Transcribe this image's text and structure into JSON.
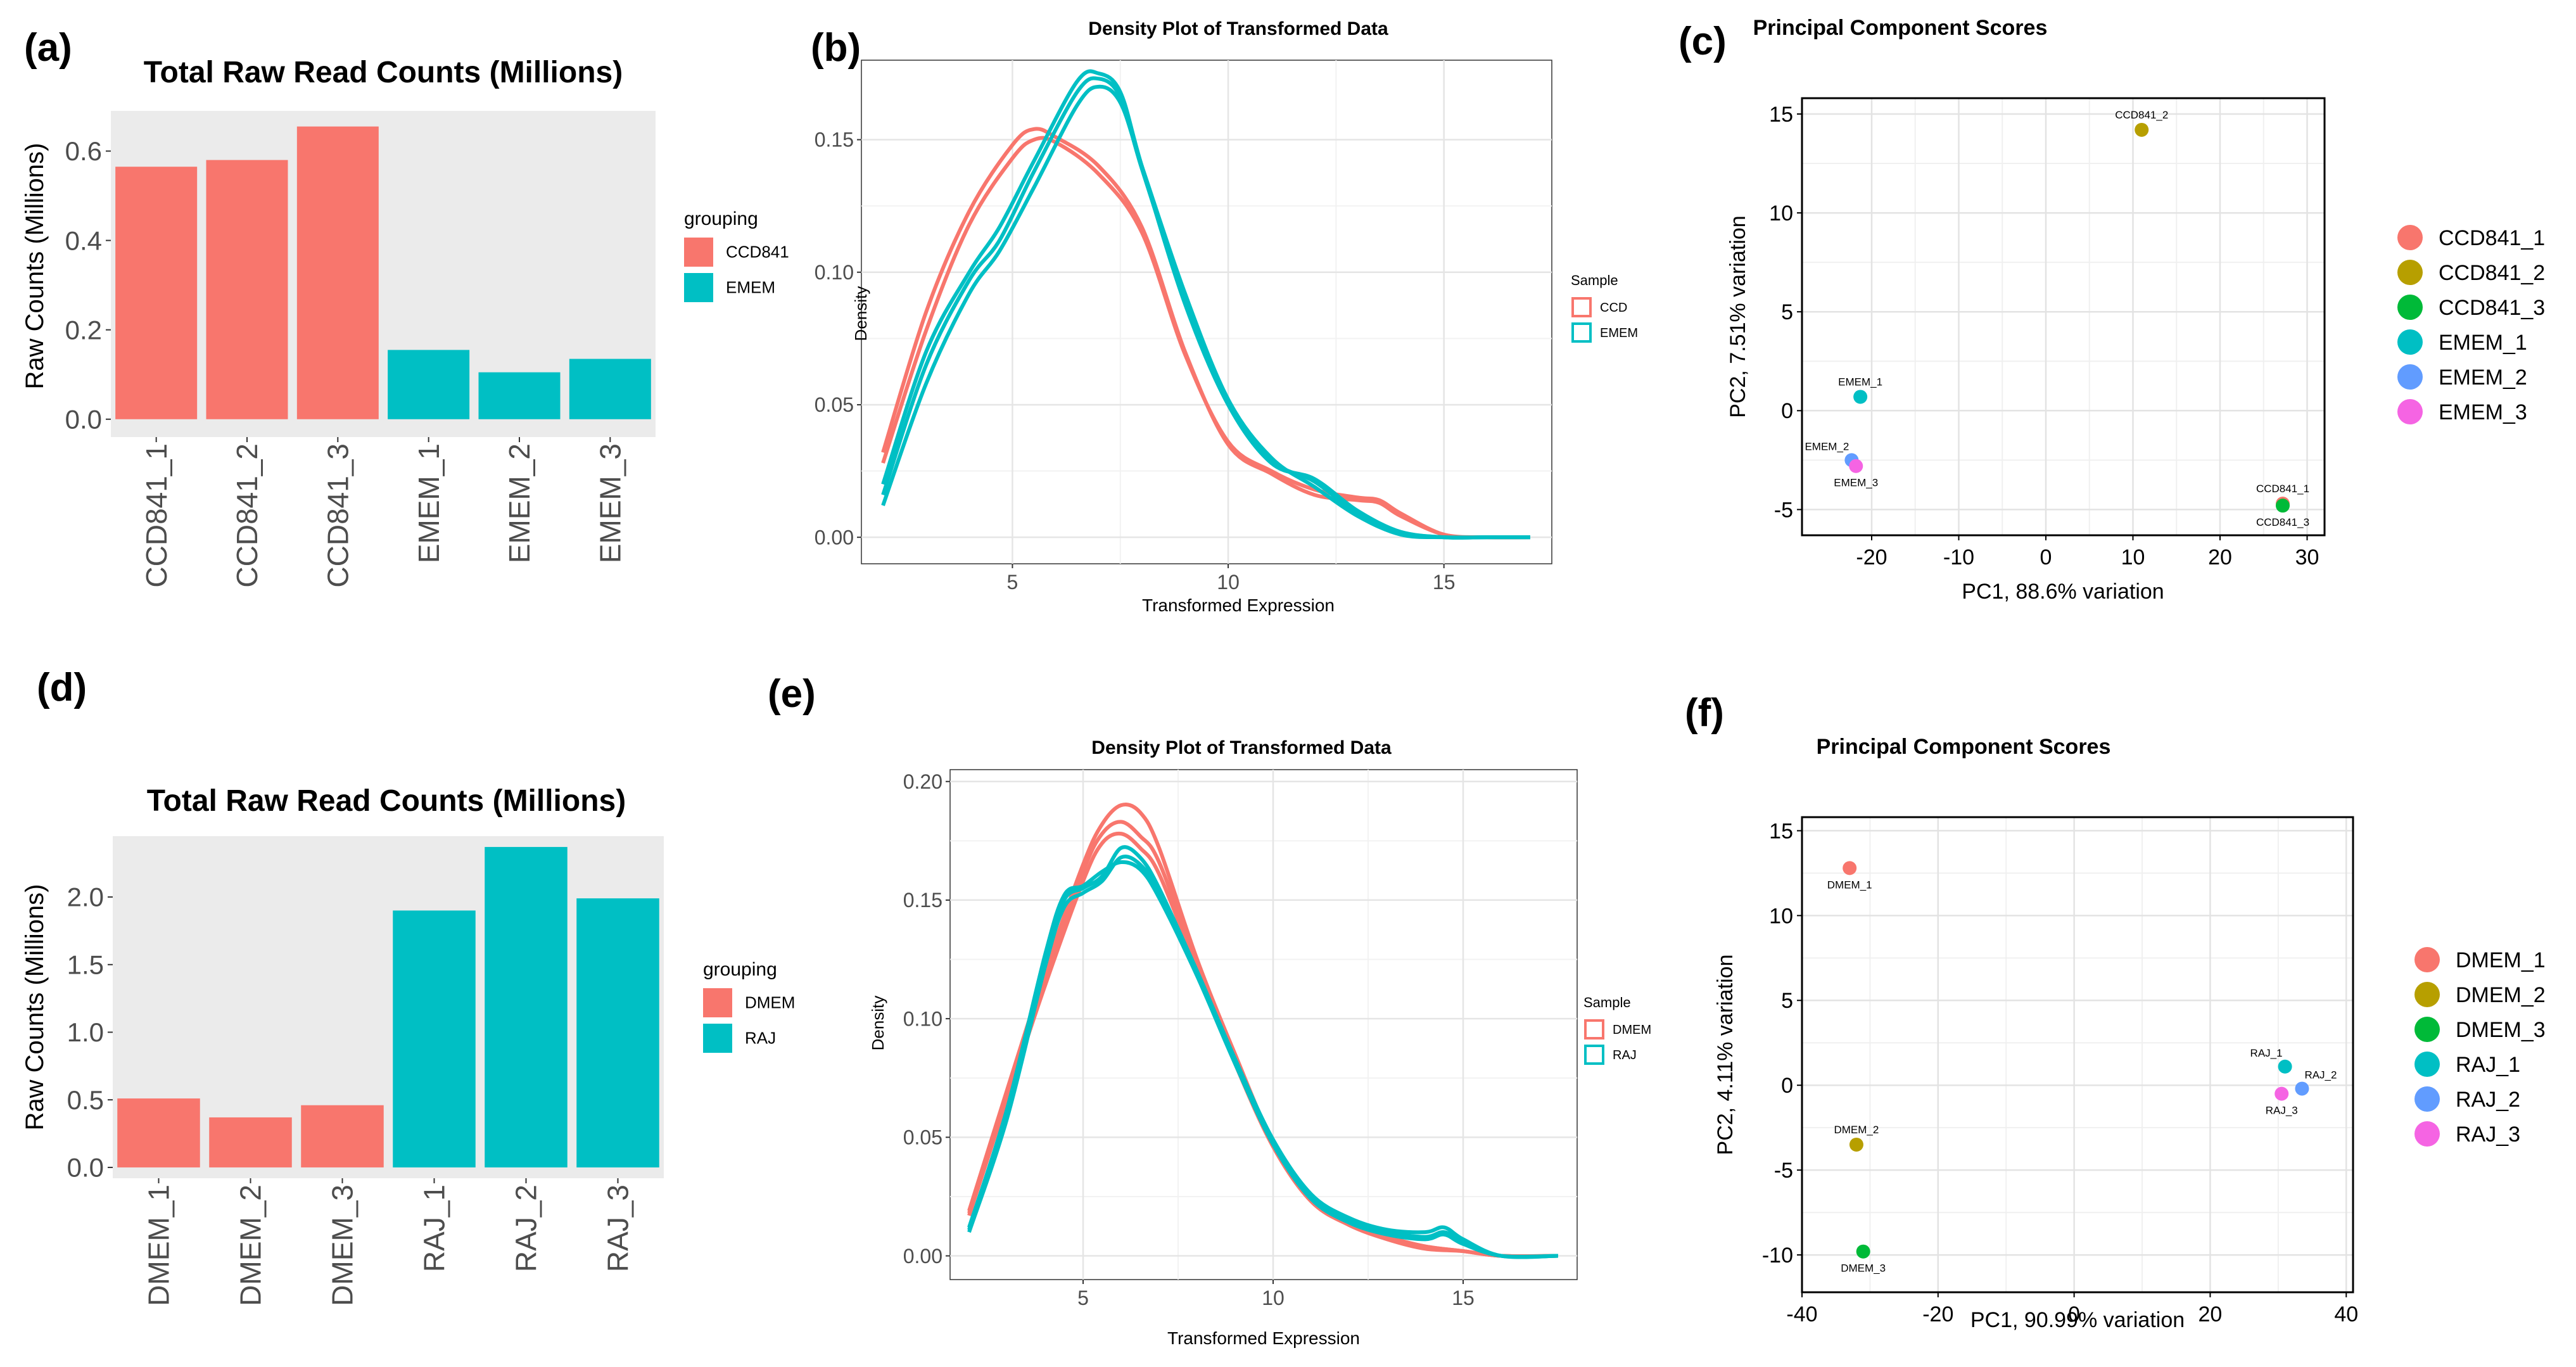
{
  "panels": {
    "a": {
      "label": "(a)"
    },
    "b": {
      "label": "(b)"
    },
    "c": {
      "label": "(c)"
    },
    "d": {
      "label": "(d)"
    },
    "e": {
      "label": "(e)"
    },
    "f": {
      "label": "(f)"
    }
  },
  "chart_data": [
    {
      "id": "a",
      "type": "bar",
      "title": "Total Raw Read Counts (Millions)",
      "xlabel": "",
      "ylabel": "Raw Counts (Millions)",
      "categories": [
        "CCD841_1",
        "CCD841_2",
        "CCD841_3",
        "EMEM_1",
        "EMEM_2",
        "EMEM_3"
      ],
      "values": [
        0.565,
        0.58,
        0.655,
        0.155,
        0.105,
        0.135
      ],
      "groups": [
        "CCD841",
        "CCD841",
        "CCD841",
        "EMEM",
        "EMEM",
        "EMEM"
      ],
      "ylim": [
        -0.04,
        0.69
      ],
      "yticks": [
        0.0,
        0.2,
        0.4,
        0.6
      ],
      "ytick_labels": [
        "0.0",
        "0.2",
        "0.4",
        "0.6"
      ],
      "legend": {
        "title": "grouping",
        "position": "right",
        "entries": [
          {
            "name": "CCD841",
            "color": "#F8766D"
          },
          {
            "name": "EMEM",
            "color": "#00BFC4"
          }
        ]
      },
      "grid": false
    },
    {
      "id": "b",
      "type": "line",
      "title": "Density Plot of Transformed Data",
      "xlabel": "Transformed Expression",
      "ylabel": "Density",
      "xlim": [
        1.5,
        17.5
      ],
      "ylim": [
        -0.01,
        0.18
      ],
      "xticks": [
        5,
        10,
        15
      ],
      "xtick_labels": [
        "5",
        "10",
        "15"
      ],
      "yticks": [
        0.0,
        0.05,
        0.1,
        0.15
      ],
      "ytick_labels": [
        "0.00",
        "0.05",
        "0.10",
        "0.15"
      ],
      "legend": {
        "title": "Sample",
        "position": "right",
        "entries": [
          {
            "name": "CCD",
            "color": "#F8766D"
          },
          {
            "name": "EMEM",
            "color": "#00BFC4"
          }
        ]
      },
      "grid": true,
      "series": [
        {
          "group": "CCD",
          "color": "#F8766D",
          "x": [
            2,
            3,
            4,
            5,
            5.5,
            6,
            7,
            8,
            9,
            10,
            11,
            12,
            13,
            13.5,
            14,
            15,
            16,
            17
          ],
          "y": [
            0.032,
            0.085,
            0.123,
            0.148,
            0.154,
            0.151,
            0.14,
            0.117,
            0.07,
            0.035,
            0.024,
            0.016,
            0.014,
            0.013,
            0.008,
            0.001,
            0.0,
            0.0
          ]
        },
        {
          "group": "CCD",
          "color": "#F8766D",
          "x": [
            2,
            3,
            4,
            5,
            5.5,
            6,
            7,
            8,
            9,
            10,
            11,
            12,
            13,
            13.5,
            14,
            15,
            16,
            17
          ],
          "y": [
            0.028,
            0.078,
            0.118,
            0.143,
            0.15,
            0.149,
            0.137,
            0.115,
            0.069,
            0.036,
            0.025,
            0.018,
            0.015,
            0.014,
            0.009,
            0.001,
            0.0,
            0.0
          ]
        },
        {
          "group": "EMEM",
          "color": "#00BFC4",
          "x": [
            2,
            3,
            4,
            4.7,
            5.5,
            6.5,
            7,
            7.5,
            8,
            9,
            10,
            11,
            12,
            13,
            14,
            15,
            16,
            17
          ],
          "y": [
            0.02,
            0.07,
            0.1,
            0.117,
            0.142,
            0.172,
            0.175,
            0.168,
            0.14,
            0.088,
            0.05,
            0.028,
            0.022,
            0.01,
            0.002,
            0.0,
            0.0,
            0.0
          ]
        },
        {
          "group": "EMEM",
          "color": "#00BFC4",
          "x": [
            2,
            3,
            4,
            4.7,
            5.5,
            6.5,
            7,
            7.5,
            8,
            9,
            10,
            11,
            12,
            13,
            14,
            15,
            16,
            17
          ],
          "y": [
            0.016,
            0.065,
            0.097,
            0.112,
            0.138,
            0.168,
            0.173,
            0.166,
            0.139,
            0.09,
            0.051,
            0.029,
            0.021,
            0.009,
            0.002,
            0.0,
            0.0,
            0.0
          ]
        },
        {
          "group": "EMEM",
          "color": "#00BFC4",
          "x": [
            2,
            3,
            4,
            4.7,
            5.5,
            6.5,
            7,
            7.5,
            8,
            9,
            10,
            11,
            12,
            13,
            14,
            15,
            16,
            17
          ],
          "y": [
            0.012,
            0.058,
            0.092,
            0.108,
            0.132,
            0.163,
            0.17,
            0.164,
            0.14,
            0.092,
            0.052,
            0.03,
            0.019,
            0.008,
            0.001,
            0.0,
            0.0,
            0.0
          ]
        }
      ]
    },
    {
      "id": "c",
      "type": "scatter",
      "title": "Principal Component Scores",
      "xlabel": "PC1, 88.6% variation",
      "ylabel": "PC2, 7.51% variation",
      "xlim": [
        -28,
        32
      ],
      "ylim": [
        -6.3,
        15.8
      ],
      "xticks": [
        -20,
        -10,
        0,
        10,
        20,
        30
      ],
      "xtick_labels": [
        "-20",
        "-10",
        "0",
        "10",
        "20",
        "30"
      ],
      "yticks": [
        -5,
        0,
        5,
        10,
        15
      ],
      "ytick_labels": [
        "-5",
        "0",
        "5",
        "10",
        "15"
      ],
      "legend": {
        "position": "right",
        "entries": [
          {
            "name": "CCD841_1",
            "color": "#F8766D"
          },
          {
            "name": "CCD841_2",
            "color": "#B79F00"
          },
          {
            "name": "CCD841_3",
            "color": "#00BA38"
          },
          {
            "name": "EMEM_1",
            "color": "#00BFC4"
          },
          {
            "name": "EMEM_2",
            "color": "#619CFF"
          },
          {
            "name": "EMEM_3",
            "color": "#F564E3"
          }
        ]
      },
      "grid": true,
      "points": [
        {
          "label": "CCD841_1",
          "x": 27.2,
          "y": -4.7,
          "color": "#F8766D",
          "label_pos": "above"
        },
        {
          "label": "CCD841_2",
          "x": 11.0,
          "y": 14.2,
          "color": "#B79F00",
          "label_pos": "above"
        },
        {
          "label": "CCD841_3",
          "x": 27.2,
          "y": -4.8,
          "color": "#00BA38",
          "label_pos": "below"
        },
        {
          "label": "EMEM_1",
          "x": -21.3,
          "y": 0.7,
          "color": "#00BFC4",
          "label_pos": "above"
        },
        {
          "label": "EMEM_2",
          "x": -22.3,
          "y": -2.5,
          "color": "#619CFF",
          "label_pos": "above-left"
        },
        {
          "label": "EMEM_3",
          "x": -21.8,
          "y": -2.8,
          "color": "#F564E3",
          "label_pos": "below"
        }
      ]
    },
    {
      "id": "d",
      "type": "bar",
      "title": "Total Raw Read Counts (Millions)",
      "xlabel": "",
      "ylabel": "Raw Counts (Millions)",
      "categories": [
        "DMEM_1",
        "DMEM_2",
        "DMEM_3",
        "RAJ_1",
        "RAJ_2",
        "RAJ_3"
      ],
      "values": [
        0.51,
        0.37,
        0.46,
        1.9,
        2.37,
        1.99
      ],
      "groups": [
        "DMEM",
        "DMEM",
        "DMEM",
        "RAJ",
        "RAJ",
        "RAJ"
      ],
      "ylim": [
        -0.08,
        2.45
      ],
      "yticks": [
        0.0,
        0.5,
        1.0,
        1.5,
        2.0
      ],
      "ytick_labels": [
        "0.0",
        "0.5",
        "1.0",
        "1.5",
        "2.0"
      ],
      "legend": {
        "title": "grouping",
        "position": "right",
        "entries": [
          {
            "name": "DMEM",
            "color": "#F8766D"
          },
          {
            "name": "RAJ",
            "color": "#00BFC4"
          }
        ]
      },
      "grid": false
    },
    {
      "id": "e",
      "type": "line",
      "title": "Density Plot of Transformed Data",
      "xlabel": "Transformed Expression",
      "ylabel": "Density",
      "xlim": [
        1.5,
        18
      ],
      "ylim": [
        -0.01,
        0.205
      ],
      "xticks": [
        5,
        10,
        15
      ],
      "xtick_labels": [
        "5",
        "10",
        "15"
      ],
      "yticks": [
        0.0,
        0.05,
        0.1,
        0.15,
        0.2
      ],
      "ytick_labels": [
        "0.00",
        "0.05",
        "0.10",
        "0.15",
        "0.20"
      ],
      "legend": {
        "title": "Sample",
        "position": "right",
        "entries": [
          {
            "name": "DMEM",
            "color": "#F8766D"
          },
          {
            "name": "RAJ",
            "color": "#00BFC4"
          }
        ]
      },
      "grid": true,
      "series": [
        {
          "group": "DMEM",
          "color": "#F8766D",
          "x": [
            2,
            3,
            4,
            5,
            5.5,
            6,
            6.5,
            7,
            8,
            9,
            10,
            11,
            12,
            13,
            14,
            15,
            16,
            17.5
          ],
          "y": [
            0.019,
            0.07,
            0.12,
            0.165,
            0.182,
            0.19,
            0.187,
            0.172,
            0.125,
            0.085,
            0.048,
            0.025,
            0.014,
            0.008,
            0.004,
            0.002,
            0.0,
            0.0
          ]
        },
        {
          "group": "DMEM",
          "color": "#F8766D",
          "x": [
            2,
            3,
            4,
            5,
            5.5,
            6,
            6.5,
            7,
            8,
            9,
            10,
            11,
            12,
            13,
            14,
            15,
            16,
            17.5
          ],
          "y": [
            0.018,
            0.068,
            0.117,
            0.162,
            0.178,
            0.183,
            0.177,
            0.166,
            0.123,
            0.083,
            0.047,
            0.024,
            0.013,
            0.008,
            0.004,
            0.002,
            0.0,
            0.0
          ]
        },
        {
          "group": "DMEM",
          "color": "#F8766D",
          "x": [
            2,
            3,
            4,
            5,
            5.5,
            6,
            6.5,
            7,
            8,
            9,
            10,
            11,
            12,
            13,
            14,
            15,
            16,
            17.5
          ],
          "y": [
            0.017,
            0.066,
            0.114,
            0.158,
            0.174,
            0.178,
            0.172,
            0.161,
            0.121,
            0.081,
            0.046,
            0.023,
            0.013,
            0.007,
            0.003,
            0.002,
            0.0,
            0.0
          ]
        },
        {
          "group": "RAJ",
          "color": "#00BFC4",
          "x": [
            2,
            3,
            4,
            4.5,
            5,
            5.5,
            6,
            6.5,
            7,
            8,
            9,
            10,
            11,
            12,
            13,
            14,
            14.5,
            15,
            16,
            17.5
          ],
          "y": [
            0.011,
            0.06,
            0.125,
            0.15,
            0.155,
            0.16,
            0.172,
            0.168,
            0.155,
            0.12,
            0.083,
            0.049,
            0.026,
            0.016,
            0.011,
            0.01,
            0.012,
            0.007,
            0.0,
            0.0
          ]
        },
        {
          "group": "RAJ",
          "color": "#00BFC4",
          "x": [
            2,
            3,
            4,
            4.5,
            5,
            5.5,
            6,
            6.5,
            7,
            8,
            9,
            10,
            11,
            12,
            13,
            14,
            14.5,
            15,
            16,
            17.5
          ],
          "y": [
            0.01,
            0.058,
            0.122,
            0.147,
            0.153,
            0.158,
            0.168,
            0.165,
            0.153,
            0.119,
            0.082,
            0.048,
            0.025,
            0.015,
            0.01,
            0.008,
            0.01,
            0.006,
            0.0,
            0.0
          ]
        },
        {
          "group": "RAJ",
          "color": "#00BFC4",
          "x": [
            2,
            3,
            4,
            4.5,
            5,
            5.5,
            6,
            6.5,
            7,
            8,
            9,
            10,
            11,
            12,
            13,
            14,
            14.5,
            15,
            16,
            17.5
          ],
          "y": [
            0.012,
            0.062,
            0.127,
            0.152,
            0.156,
            0.162,
            0.166,
            0.163,
            0.151,
            0.118,
            0.081,
            0.047,
            0.024,
            0.014,
            0.009,
            0.007,
            0.009,
            0.005,
            0.0,
            0.0
          ]
        }
      ]
    },
    {
      "id": "f",
      "type": "scatter",
      "title": "Principal Component Scores",
      "xlabel": "PC1, 90.99% variation",
      "ylabel": "PC2, 4.11% variation",
      "xlim": [
        -40,
        41
      ],
      "ylim": [
        -12.2,
        15.8
      ],
      "xticks": [
        -40,
        -20,
        0,
        20,
        40
      ],
      "xtick_labels": [
        "-40",
        "-20",
        "0",
        "20",
        "40"
      ],
      "yticks": [
        -10,
        -5,
        0,
        5,
        10,
        15
      ],
      "ytick_labels": [
        "-10",
        "-5",
        "0",
        "5",
        "10",
        "15"
      ],
      "legend": {
        "position": "right",
        "entries": [
          {
            "name": "DMEM_1",
            "color": "#F8766D"
          },
          {
            "name": "DMEM_2",
            "color": "#B79F00"
          },
          {
            "name": "DMEM_3",
            "color": "#00BA38"
          },
          {
            "name": "RAJ_1",
            "color": "#00BFC4"
          },
          {
            "name": "RAJ_2",
            "color": "#619CFF"
          },
          {
            "name": "RAJ_3",
            "color": "#F564E3"
          }
        ]
      },
      "grid": true,
      "points": [
        {
          "label": "DMEM_1",
          "x": -33,
          "y": 12.8,
          "color": "#F8766D",
          "label_pos": "below"
        },
        {
          "label": "DMEM_2",
          "x": -32,
          "y": -3.5,
          "color": "#B79F00",
          "label_pos": "above"
        },
        {
          "label": "DMEM_3",
          "x": -31,
          "y": -9.8,
          "color": "#00BA38",
          "label_pos": "below"
        },
        {
          "label": "RAJ_1",
          "x": 31,
          "y": 1.1,
          "color": "#00BFC4",
          "label_pos": "above-left"
        },
        {
          "label": "RAJ_2",
          "x": 33.5,
          "y": -0.2,
          "color": "#619CFF",
          "label_pos": "above-right"
        },
        {
          "label": "RAJ_3",
          "x": 30.5,
          "y": -0.5,
          "color": "#F564E3",
          "label_pos": "below"
        }
      ]
    }
  ]
}
